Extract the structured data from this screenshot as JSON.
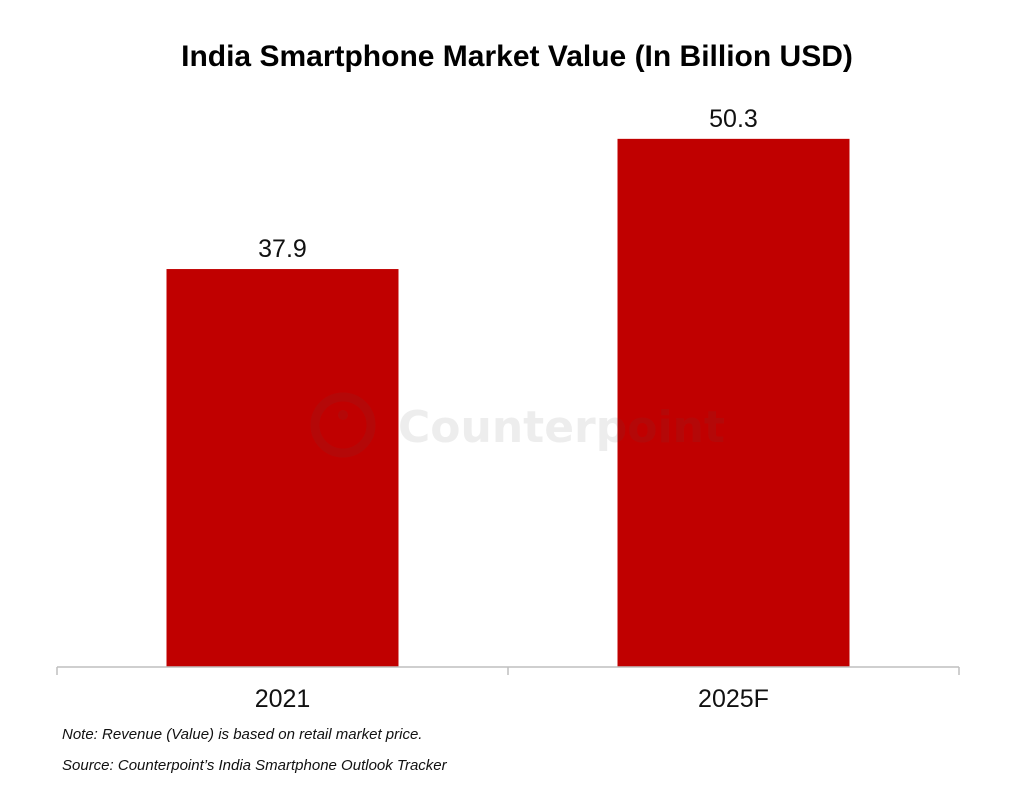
{
  "chart_data": {
    "type": "bar",
    "title": "India Smartphone Market Value (In Billion USD)",
    "categories": [
      "2021",
      "2025F"
    ],
    "values": [
      37.9,
      50.3
    ],
    "data_labels": [
      "37.9",
      "50.3"
    ],
    "xlabel": "",
    "ylabel": "",
    "ylim": [
      0,
      55
    ],
    "grid": false,
    "legend": "none",
    "bar_color": "#c00000",
    "axis_color": "#bfbfbf"
  },
  "footnotes": {
    "note": "Note: Revenue (Value) is based on retail market price.",
    "source": "Source: Counterpoint’s India Smartphone Outlook Tracker"
  },
  "watermark": {
    "text": "Counterpoint",
    "icon": "counterpoint-logo-icon"
  }
}
